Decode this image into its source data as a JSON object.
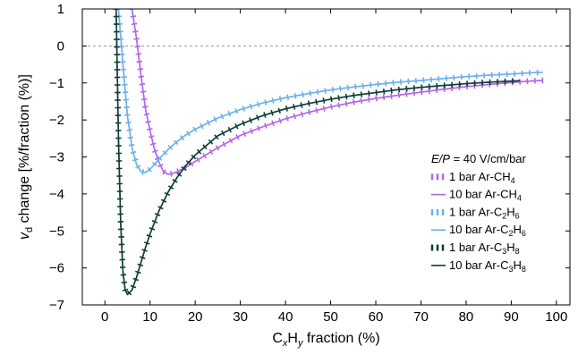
{
  "chart_data": {
    "type": "line",
    "title": "",
    "xlabel": {
      "base": "C",
      "sub1": "x",
      "mid": "H",
      "sub2": "y",
      "rest": " fraction (%)"
    },
    "ylabel": {
      "base": "v",
      "sub": "d",
      "rest": " change [%/fraction (%)]"
    },
    "xlim": [
      -5,
      103
    ],
    "ylim": [
      -7,
      1
    ],
    "xticks": [
      0,
      10,
      20,
      30,
      40,
      50,
      60,
      70,
      80,
      90,
      100
    ],
    "yticks": [
      -7,
      -6,
      -5,
      -4,
      -3,
      -2,
      -1,
      0,
      1
    ],
    "xtick_labels": [
      "0",
      "10",
      "20",
      "30",
      "40",
      "50",
      "60",
      "70",
      "80",
      "90",
      "100"
    ],
    "ytick_labels": [
      "−7",
      "−6",
      "−5",
      "−4",
      "−3",
      "−2",
      "−1",
      "0",
      "1"
    ],
    "reference_line": {
      "y": 0,
      "style": "dashed",
      "color": "#999999"
    },
    "grid": false,
    "legend": {
      "placement": "lower-right",
      "header": {
        "italic": "E/P",
        "rest": " = 40 V/cm/bar"
      }
    },
    "series": [
      {
        "name": "1 bar Ar-CH4",
        "label": {
          "base": "1 bar Ar-CH",
          "sub": "4"
        },
        "color": "#b366e8",
        "style": "dotted-markers",
        "points": [
          [
            6,
            1
          ],
          [
            7,
            0.2
          ],
          [
            8,
            -0.8
          ],
          [
            9,
            -1.7
          ],
          [
            10,
            -2.3
          ],
          [
            11,
            -2.8
          ],
          [
            12,
            -3.15
          ],
          [
            13,
            -3.4
          ],
          [
            14,
            -3.47
          ],
          [
            15,
            -3.45
          ],
          [
            16,
            -3.4
          ],
          [
            18,
            -3.28
          ],
          [
            20,
            -3.12
          ],
          [
            25,
            -2.75
          ],
          [
            30,
            -2.42
          ],
          [
            35,
            -2.18
          ],
          [
            40,
            -1.97
          ],
          [
            45,
            -1.8
          ],
          [
            50,
            -1.65
          ],
          [
            55,
            -1.52
          ],
          [
            60,
            -1.42
          ],
          [
            65,
            -1.33
          ],
          [
            70,
            -1.25
          ],
          [
            75,
            -1.17
          ],
          [
            80,
            -1.1
          ],
          [
            85,
            -1.04
          ],
          [
            90,
            -0.99
          ],
          [
            95,
            -0.94
          ],
          [
            97,
            -0.93
          ]
        ]
      },
      {
        "name": "10 bar Ar-CH4",
        "label": {
          "base": "10 bar Ar-CH",
          "sub": "4"
        },
        "color": "#b366e8",
        "style": "solid",
        "points": [
          [
            6,
            1
          ],
          [
            7,
            0.2
          ],
          [
            8,
            -0.8
          ],
          [
            9,
            -1.7
          ],
          [
            10,
            -2.3
          ],
          [
            11,
            -2.8
          ],
          [
            12,
            -3.15
          ],
          [
            13,
            -3.4
          ],
          [
            14,
            -3.47
          ],
          [
            15,
            -3.45
          ],
          [
            16,
            -3.4
          ],
          [
            18,
            -3.28
          ],
          [
            20,
            -3.12
          ],
          [
            25,
            -2.75
          ],
          [
            30,
            -2.42
          ],
          [
            35,
            -2.18
          ],
          [
            40,
            -1.97
          ],
          [
            45,
            -1.8
          ],
          [
            50,
            -1.65
          ],
          [
            55,
            -1.52
          ],
          [
            60,
            -1.42
          ],
          [
            65,
            -1.33
          ],
          [
            70,
            -1.25
          ],
          [
            75,
            -1.17
          ],
          [
            80,
            -1.1
          ],
          [
            85,
            -1.04
          ],
          [
            90,
            -0.99
          ],
          [
            95,
            -0.94
          ],
          [
            97,
            -0.93
          ]
        ]
      },
      {
        "name": "1 bar Ar-C2H6",
        "label": {
          "base": "1 bar Ar-C",
          "sub": "2",
          "mid": "H",
          "sub2": "6"
        },
        "color": "#6ab0ec",
        "style": "dotted-markers",
        "points": [
          [
            3,
            1
          ],
          [
            4,
            -0.5
          ],
          [
            5,
            -1.9
          ],
          [
            6,
            -2.75
          ],
          [
            7,
            -3.2
          ],
          [
            8,
            -3.4
          ],
          [
            9,
            -3.42
          ],
          [
            10,
            -3.33
          ],
          [
            11,
            -3.2
          ],
          [
            12,
            -3.05
          ],
          [
            14,
            -2.8
          ],
          [
            16,
            -2.58
          ],
          [
            18,
            -2.4
          ],
          [
            20,
            -2.25
          ],
          [
            25,
            -1.95
          ],
          [
            30,
            -1.72
          ],
          [
            35,
            -1.54
          ],
          [
            40,
            -1.4
          ],
          [
            45,
            -1.29
          ],
          [
            50,
            -1.19
          ],
          [
            55,
            -1.11
          ],
          [
            60,
            -1.04
          ],
          [
            65,
            -0.98
          ],
          [
            70,
            -0.93
          ],
          [
            75,
            -0.88
          ],
          [
            80,
            -0.83
          ],
          [
            85,
            -0.79
          ],
          [
            90,
            -0.76
          ],
          [
            95,
            -0.72
          ],
          [
            97,
            -0.71
          ]
        ]
      },
      {
        "name": "10 bar Ar-C2H6",
        "label": {
          "base": "10 bar Ar-C",
          "sub": "2",
          "mid": "H",
          "sub2": "6"
        },
        "color": "#6ab0ec",
        "style": "solid",
        "points": [
          [
            3,
            1
          ],
          [
            4,
            -0.5
          ],
          [
            5,
            -1.9
          ],
          [
            6,
            -2.75
          ],
          [
            7,
            -3.2
          ],
          [
            8,
            -3.4
          ],
          [
            9,
            -3.42
          ],
          [
            10,
            -3.33
          ],
          [
            11,
            -3.2
          ],
          [
            12,
            -3.05
          ],
          [
            14,
            -2.8
          ],
          [
            16,
            -2.58
          ],
          [
            18,
            -2.4
          ],
          [
            20,
            -2.25
          ],
          [
            25,
            -1.95
          ],
          [
            30,
            -1.72
          ],
          [
            35,
            -1.54
          ],
          [
            40,
            -1.4
          ],
          [
            45,
            -1.29
          ],
          [
            50,
            -1.19
          ],
          [
            55,
            -1.11
          ],
          [
            60,
            -1.04
          ],
          [
            65,
            -0.98
          ],
          [
            70,
            -0.93
          ],
          [
            75,
            -0.88
          ],
          [
            80,
            -0.83
          ],
          [
            85,
            -0.79
          ],
          [
            90,
            -0.76
          ],
          [
            95,
            -0.72
          ],
          [
            97,
            -0.71
          ]
        ]
      },
      {
        "name": "1 bar Ar-C3H8",
        "label": {
          "base": "1 bar Ar-C",
          "sub": "3",
          "mid": "H",
          "sub2": "8"
        },
        "color": "#0f3d3a",
        "style": "dotted-markers",
        "points": [
          [
            2.5,
            1
          ],
          [
            3,
            -2.5
          ],
          [
            3.5,
            -4.8
          ],
          [
            4,
            -6.1
          ],
          [
            4.5,
            -6.6
          ],
          [
            5,
            -6.72
          ],
          [
            6,
            -6.6
          ],
          [
            7,
            -6.25
          ],
          [
            8,
            -5.85
          ],
          [
            9,
            -5.45
          ],
          [
            10,
            -5.08
          ],
          [
            12,
            -4.45
          ],
          [
            14,
            -3.95
          ],
          [
            16,
            -3.55
          ],
          [
            18,
            -3.22
          ],
          [
            20,
            -2.95
          ],
          [
            25,
            -2.43
          ],
          [
            30,
            -2.12
          ],
          [
            35,
            -1.88
          ],
          [
            40,
            -1.7
          ],
          [
            45,
            -1.56
          ],
          [
            50,
            -1.44
          ],
          [
            55,
            -1.34
          ],
          [
            60,
            -1.26
          ],
          [
            65,
            -1.18
          ],
          [
            70,
            -1.12
          ],
          [
            75,
            -1.07
          ],
          [
            80,
            -1.02
          ],
          [
            85,
            -0.98
          ],
          [
            90,
            -0.95
          ],
          [
            92,
            -0.94
          ]
        ]
      },
      {
        "name": "10 bar Ar-C3H8",
        "label": {
          "base": "10 bar Ar-C",
          "sub": "3",
          "mid": "H",
          "sub2": "8"
        },
        "color": "#0f3d3a",
        "style": "solid",
        "points": [
          [
            2.5,
            1
          ],
          [
            3,
            -2.5
          ],
          [
            3.5,
            -4.8
          ],
          [
            4,
            -6.1
          ],
          [
            4.5,
            -6.6
          ],
          [
            5,
            -6.72
          ],
          [
            6,
            -6.6
          ],
          [
            7,
            -6.25
          ],
          [
            8,
            -5.85
          ],
          [
            9,
            -5.45
          ],
          [
            10,
            -5.08
          ],
          [
            12,
            -4.45
          ],
          [
            14,
            -3.95
          ],
          [
            16,
            -3.55
          ],
          [
            18,
            -3.22
          ],
          [
            20,
            -2.95
          ],
          [
            25,
            -2.43
          ],
          [
            30,
            -2.12
          ],
          [
            35,
            -1.88
          ],
          [
            40,
            -1.7
          ],
          [
            45,
            -1.56
          ],
          [
            50,
            -1.44
          ],
          [
            55,
            -1.34
          ],
          [
            60,
            -1.26
          ],
          [
            65,
            -1.18
          ],
          [
            70,
            -1.12
          ],
          [
            75,
            -1.07
          ],
          [
            80,
            -1.02
          ],
          [
            85,
            -0.98
          ],
          [
            90,
            -0.95
          ],
          [
            92,
            -0.94
          ]
        ]
      }
    ]
  }
}
